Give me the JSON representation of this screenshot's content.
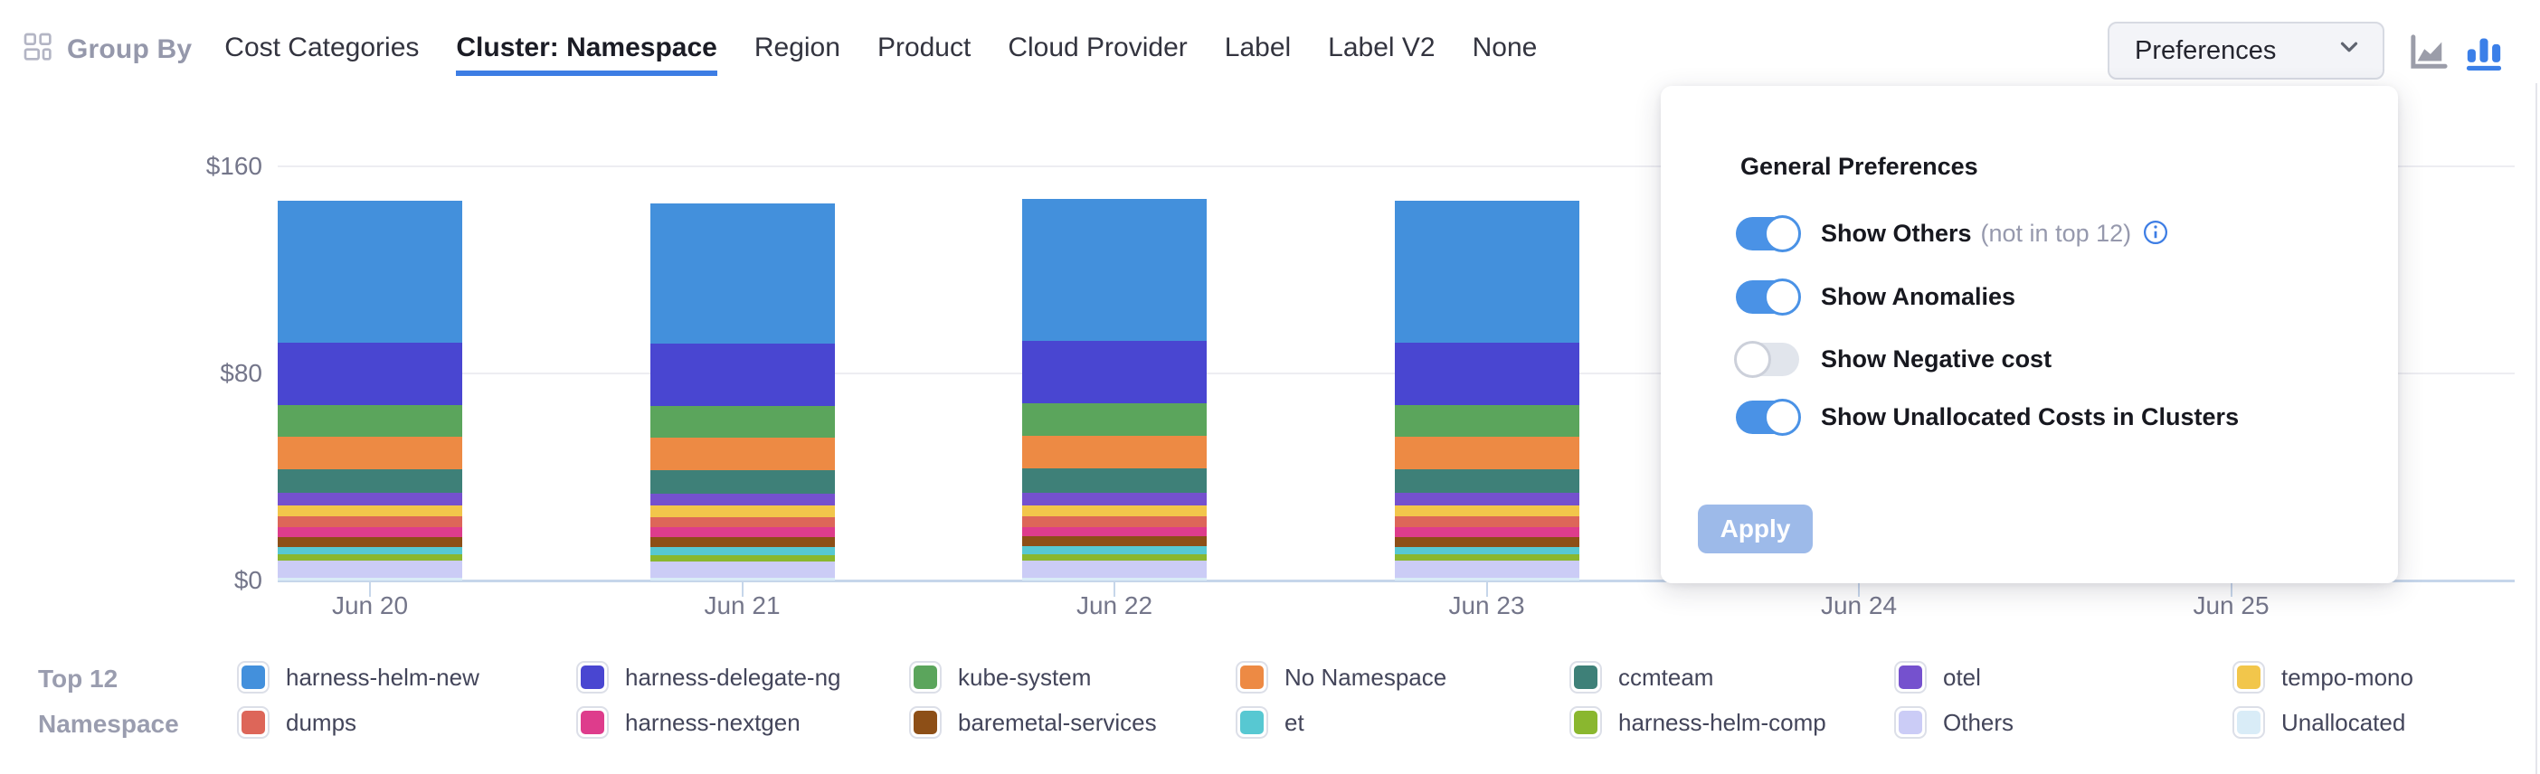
{
  "header": {
    "group_by_label": "Group By",
    "tabs": [
      {
        "label": "Cost Categories",
        "active": false
      },
      {
        "label": "Cluster: Namespace",
        "active": true
      },
      {
        "label": "Region",
        "active": false
      },
      {
        "label": "Product",
        "active": false
      },
      {
        "label": "Cloud Provider",
        "active": false
      },
      {
        "label": "Label",
        "active": false
      },
      {
        "label": "Label V2",
        "active": false
      },
      {
        "label": "None",
        "active": false
      }
    ],
    "preferences_button_label": "Preferences",
    "accent_color": "#3D7DE4"
  },
  "preferences_panel": {
    "title": "General Preferences",
    "toggles": [
      {
        "label": "Show Others",
        "suffix": "(not in top 12)",
        "has_info_icon": true,
        "on": true
      },
      {
        "label": "Show Anomalies",
        "suffix": "",
        "has_info_icon": false,
        "on": true
      },
      {
        "label": "Show Negative cost",
        "suffix": "",
        "has_info_icon": false,
        "on": false
      },
      {
        "label": "Show Unallocated Costs in Clusters",
        "suffix": "",
        "has_info_icon": false,
        "on": true
      }
    ],
    "apply_label": "Apply",
    "toggle_on_color": "#4A92E6"
  },
  "legend": {
    "title_lines": [
      "Top 12",
      "Namespace"
    ]
  },
  "chart_data": {
    "type": "bar",
    "stacked": true,
    "title": "",
    "xlabel": "",
    "ylabel": "",
    "ylim": [
      0,
      160
    ],
    "y_tick_labels": [
      "$0",
      "$80",
      "$160"
    ],
    "grid": true,
    "categories": [
      "Jun 20",
      "Jun 21",
      "Jun 22",
      "Jun 23",
      "Jun 24",
      "Jun 25"
    ],
    "visible_bar_categories": [
      "Jun 20",
      "Jun 21",
      "Jun 22",
      "Jun 23"
    ],
    "stack_order_note": "series listed in legend order (row-major); stacked bottom-to-top in reverse of this order (Unallocated at bottom, harness-helm-new on top)",
    "series": [
      {
        "name": "harness-helm-new",
        "color": "#4390DC",
        "values": [
          54.7,
          54.4,
          55.1,
          54.7
        ]
      },
      {
        "name": "harness-delegate-ng",
        "color": "#4946D1",
        "values": [
          24.0,
          23.9,
          24.1,
          24.0
        ]
      },
      {
        "name": "kube-system",
        "color": "#5BA55C",
        "values": [
          12.3,
          12.2,
          12.4,
          12.3
        ]
      },
      {
        "name": "No Namespace",
        "color": "#ED8A44",
        "values": [
          12.6,
          12.5,
          12.7,
          12.6
        ]
      },
      {
        "name": "ccmteam",
        "color": "#3E8078",
        "values": [
          9.2,
          9.1,
          9.3,
          9.2
        ]
      },
      {
        "name": "otel",
        "color": "#7551CE",
        "values": [
          4.8,
          4.8,
          4.8,
          4.8
        ]
      },
      {
        "name": "tempo-mono",
        "color": "#F2C64B",
        "values": [
          4.3,
          4.3,
          4.3,
          4.3
        ]
      },
      {
        "name": "dumps",
        "color": "#DD6659",
        "values": [
          4.1,
          4.1,
          4.2,
          4.1
        ]
      },
      {
        "name": "harness-nextgen",
        "color": "#DE3C8C",
        "values": [
          3.7,
          3.7,
          3.7,
          3.7
        ]
      },
      {
        "name": "baremetal-services",
        "color": "#8D4F17",
        "values": [
          3.8,
          3.8,
          3.8,
          3.8
        ]
      },
      {
        "name": "et",
        "color": "#57C8D2",
        "values": [
          3.1,
          3.1,
          3.1,
          3.1
        ]
      },
      {
        "name": "harness-helm-comp",
        "color": "#8AB72F",
        "values": [
          2.4,
          2.4,
          2.4,
          2.4
        ]
      },
      {
        "name": "Others",
        "color": "#CBCCF6",
        "values": [
          6.7,
          6.6,
          6.8,
          6.7
        ]
      },
      {
        "name": "Unallocated",
        "color": "#D9ECF7",
        "values": [
          0.9,
          0.9,
          0.9,
          0.9
        ]
      }
    ]
  }
}
